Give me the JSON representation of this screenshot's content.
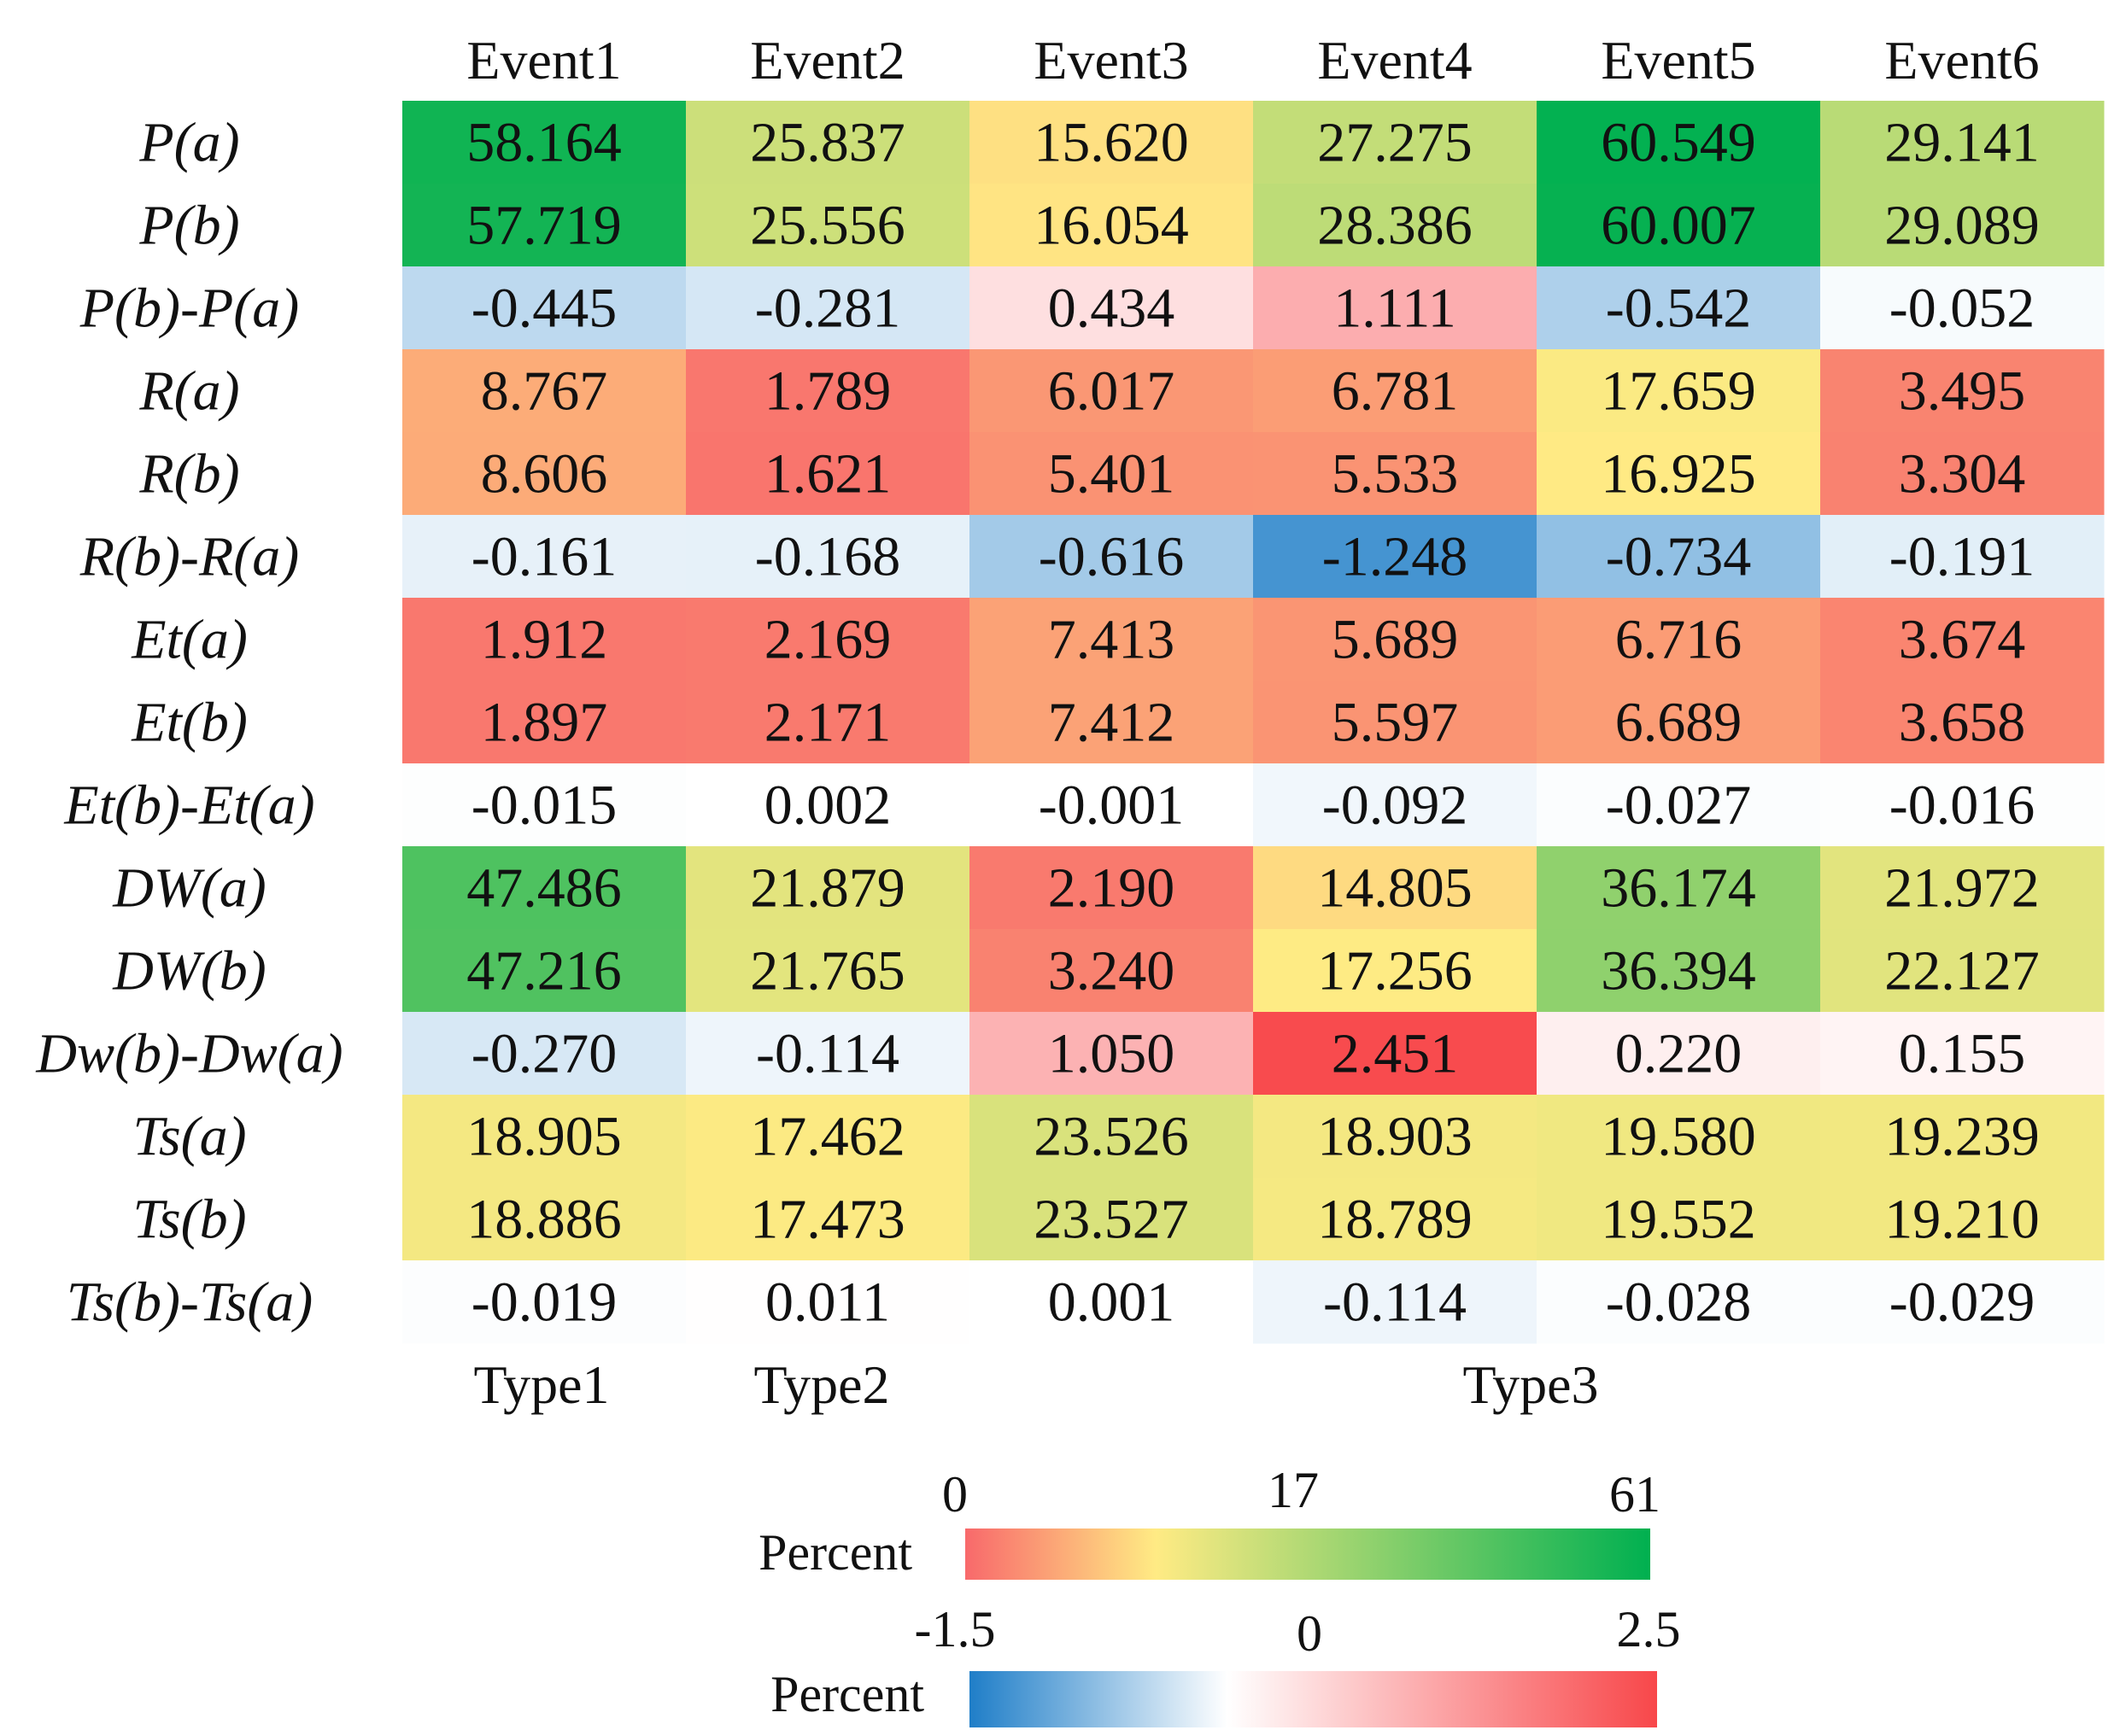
{
  "chart_data": {
    "type": "heatmap",
    "columns": [
      "Event1",
      "Event2",
      "Event3",
      "Event4",
      "Event5",
      "Event6"
    ],
    "groups": [
      "Type1",
      "Type2",
      "Type3"
    ],
    "rows": [
      {
        "label": "P(a)",
        "scale": "percent",
        "values": [
          "58.164",
          "25.837",
          "15.620",
          "27.275",
          "60.549",
          "29.141"
        ]
      },
      {
        "label": "P(b)",
        "scale": "percent",
        "values": [
          "57.719",
          "25.556",
          "16.054",
          "28.386",
          "60.007",
          "29.089"
        ]
      },
      {
        "label": "P(b)-P(a)",
        "scale": "diff",
        "values": [
          "-0.445",
          "-0.281",
          "0.434",
          "1.111",
          "-0.542",
          "-0.052"
        ]
      },
      {
        "label": "R(a)",
        "scale": "percent",
        "values": [
          "8.767",
          "1.789",
          "6.017",
          "6.781",
          "17.659",
          "3.495"
        ]
      },
      {
        "label": "R(b)",
        "scale": "percent",
        "values": [
          "8.606",
          "1.621",
          "5.401",
          "5.533",
          "16.925",
          "3.304"
        ]
      },
      {
        "label": "R(b)-R(a)",
        "scale": "diff",
        "values": [
          "-0.161",
          "-0.168",
          "-0.616",
          "-1.248",
          "-0.734",
          "-0.191"
        ]
      },
      {
        "label": "Et(a)",
        "scale": "percent",
        "values": [
          "1.912",
          "2.169",
          "7.413",
          "5.689",
          "6.716",
          "3.674"
        ]
      },
      {
        "label": "Et(b)",
        "scale": "percent",
        "values": [
          "1.897",
          "2.171",
          "7.412",
          "5.597",
          "6.689",
          "3.658"
        ]
      },
      {
        "label": "Et(b)-Et(a)",
        "scale": "diff",
        "values": [
          "-0.015",
          "0.002",
          "-0.001",
          "-0.092",
          "-0.027",
          "-0.016"
        ]
      },
      {
        "label": "DW(a)",
        "scale": "percent",
        "values": [
          "47.486",
          "21.879",
          "2.190",
          "14.805",
          "36.174",
          "21.972"
        ]
      },
      {
        "label": "DW(b)",
        "scale": "percent",
        "values": [
          "47.216",
          "21.765",
          "3.240",
          "17.256",
          "36.394",
          "22.127"
        ]
      },
      {
        "label": "Dw(b)-Dw(a)",
        "scale": "diff",
        "values": [
          "-0.270",
          "-0.114",
          "1.050",
          "2.451",
          "0.220",
          "0.155"
        ]
      },
      {
        "label": "Ts(a)",
        "scale": "percent",
        "values": [
          "18.905",
          "17.462",
          "23.526",
          "18.903",
          "19.580",
          "19.239"
        ]
      },
      {
        "label": "Ts(b)",
        "scale": "percent",
        "values": [
          "18.886",
          "17.473",
          "23.527",
          "18.789",
          "19.552",
          "19.210"
        ]
      },
      {
        "label": "Ts(b)-Ts(a)",
        "scale": "diff",
        "values": [
          "-0.019",
          "0.011",
          "0.001",
          "-0.114",
          "-0.028",
          "-0.029"
        ]
      }
    ],
    "legends": [
      {
        "title": "Percent",
        "min_label": "0",
        "mid_label": "17",
        "max_label": "61",
        "range": [
          0,
          61
        ],
        "mid": 17,
        "colors": [
          "#f8696b",
          "#ffeb84",
          "#00b050"
        ]
      },
      {
        "title": "Percent",
        "min_label": "-1.5",
        "mid_label": "0",
        "max_label": "2.5",
        "range": [
          -1.5,
          2.5
        ],
        "mid": 0,
        "colors": [
          "#1f7ec8",
          "#ffffff",
          "#f8474a"
        ]
      }
    ]
  }
}
